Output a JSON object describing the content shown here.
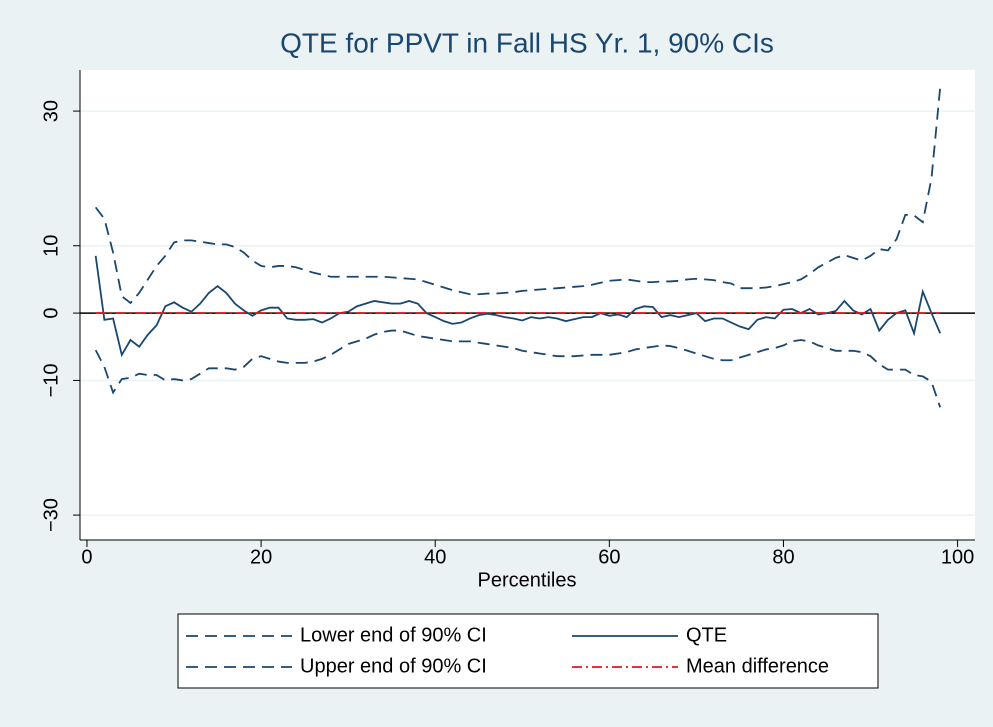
{
  "chart_data": {
    "type": "line",
    "title": "QTE for PPVT in Fall HS Yr. 1, 90% CIs",
    "x_label": "Percentiles",
    "x": [
      1,
      2,
      3,
      4,
      5,
      6,
      7,
      8,
      9,
      10,
      11,
      12,
      13,
      14,
      15,
      16,
      17,
      18,
      19,
      20,
      21,
      22,
      23,
      24,
      25,
      26,
      27,
      28,
      29,
      30,
      31,
      32,
      33,
      34,
      35,
      36,
      37,
      38,
      39,
      40,
      41,
      42,
      43,
      44,
      45,
      46,
      47,
      48,
      49,
      50,
      51,
      52,
      53,
      54,
      55,
      56,
      57,
      58,
      59,
      60,
      61,
      62,
      63,
      64,
      65,
      66,
      67,
      68,
      69,
      70,
      71,
      72,
      73,
      74,
      75,
      76,
      77,
      78,
      79,
      80,
      81,
      82,
      83,
      84,
      85,
      86,
      87,
      88,
      89,
      90,
      91,
      92,
      93,
      94,
      95,
      96,
      97,
      98
    ],
    "series": [
      {
        "name": "Lower end of 90% CI",
        "color": "#1a476f",
        "dash": "dashed",
        "values": [
          -5.5,
          -8,
          -11.8,
          -9.8,
          -9.6,
          -9,
          -9.2,
          -9.2,
          -10,
          -9.8,
          -10,
          -9.8,
          -9,
          -8.2,
          -8.2,
          -8.2,
          -8.4,
          -8,
          -6.8,
          -6.4,
          -6.8,
          -7.2,
          -7.4,
          -7.4,
          -7.4,
          -7.2,
          -6.8,
          -6.2,
          -5.4,
          -4.6,
          -4.2,
          -3.8,
          -3.2,
          -2.8,
          -2.6,
          -2.6,
          -3,
          -3.4,
          -3.6,
          -3.8,
          -4,
          -4.2,
          -4.2,
          -4.2,
          -4.4,
          -4.6,
          -4.8,
          -5,
          -5.2,
          -5.6,
          -5.8,
          -6,
          -6.2,
          -6.4,
          -6.4,
          -6.4,
          -6.3,
          -6.2,
          -6.2,
          -6.2,
          -6,
          -5.8,
          -5.4,
          -5.2,
          -5,
          -4.8,
          -4.9,
          -5.2,
          -5.6,
          -6,
          -6.4,
          -6.8,
          -7,
          -7,
          -6.6,
          -6.2,
          -5.8,
          -5.4,
          -5.2,
          -4.8,
          -4.2,
          -4,
          -4.2,
          -4.8,
          -5.2,
          -5.6,
          -5.6,
          -5.6,
          -5.8,
          -6.4,
          -7.6,
          -8.4,
          -8.4,
          -8.4,
          -9.2,
          -9.4,
          -10.2,
          -14
        ]
      },
      {
        "name": "QTE",
        "color": "#1a476f",
        "dash": "solid",
        "values": [
          8.5,
          -1,
          -0.8,
          -6.2,
          -4,
          -5,
          -3.2,
          -1.8,
          1,
          1.6,
          0.8,
          0.2,
          1.4,
          3,
          4,
          3,
          1.4,
          0.4,
          -0.4,
          0.4,
          0.8,
          0.8,
          -0.8,
          -1,
          -1,
          -0.9,
          -1.4,
          -0.8,
          0,
          0.2,
          1,
          1.4,
          1.8,
          1.6,
          1.4,
          1.4,
          1.8,
          1.4,
          0,
          -0.6,
          -1.2,
          -1.6,
          -1.4,
          -0.8,
          -0.3,
          -0.1,
          -0.3,
          -0.6,
          -0.8,
          -1.1,
          -0.6,
          -0.8,
          -0.6,
          -0.8,
          -1.2,
          -0.9,
          -0.6,
          -0.6,
          0,
          -0.4,
          -0.2,
          -0.6,
          0.6,
          1,
          0.9,
          -0.6,
          -0.3,
          -0.6,
          -0.3,
          0,
          -1.2,
          -0.8,
          -0.8,
          -1.4,
          -2,
          -2.4,
          -1,
          -0.6,
          -0.8,
          0.5,
          0.6,
          0,
          0.6,
          -0.2,
          0,
          0.3,
          1.8,
          0.4,
          -0.2,
          0.6,
          -2.6,
          -1,
          0,
          0.4,
          -3,
          3.2,
          0,
          -3
        ]
      },
      {
        "name": "Upper end of 90% CI",
        "color": "#1a476f",
        "dash": "dashed",
        "values": [
          15.7,
          14,
          9,
          2.5,
          1.5,
          3,
          5,
          7,
          8.5,
          10.5,
          10.8,
          10.8,
          10.6,
          10.4,
          10.2,
          10.2,
          9.8,
          9,
          7.8,
          7,
          6.8,
          7,
          7,
          6.8,
          6.4,
          6,
          5.7,
          5.4,
          5.4,
          5.4,
          5.4,
          5.4,
          5.4,
          5.4,
          5.3,
          5.2,
          5.1,
          5,
          4.6,
          4.2,
          3.8,
          3.4,
          3.1,
          2.8,
          2.8,
          2.9,
          2.9,
          3,
          3.1,
          3.3,
          3.4,
          3.5,
          3.6,
          3.7,
          3.8,
          3.9,
          4,
          4.2,
          4.5,
          4.8,
          4.9,
          5,
          4.8,
          4.6,
          4.6,
          4.7,
          4.7,
          4.8,
          5,
          5.1,
          5,
          4.9,
          4.6,
          4.4,
          3.7,
          3.7,
          3.7,
          3.8,
          4,
          4.3,
          4.6,
          5,
          5.8,
          6.8,
          7.5,
          8.2,
          8.6,
          8.2,
          7.8,
          8.5,
          9.5,
          9.3,
          11,
          14.6,
          14.5,
          13.5,
          20,
          33.5
        ]
      },
      {
        "name": "Mean difference",
        "color": "#e8141c",
        "dash": "dashdot",
        "values": [
          0,
          0,
          0,
          0,
          0,
          0,
          0,
          0,
          0,
          0,
          0,
          0,
          0,
          0,
          0,
          0,
          0,
          0,
          0,
          0,
          0,
          0,
          0,
          0,
          0,
          0,
          0,
          0,
          0,
          0,
          0,
          0,
          0,
          0,
          0,
          0,
          0,
          0,
          0,
          0,
          0,
          0,
          0,
          0,
          0,
          0,
          0,
          0,
          0,
          0,
          0,
          0,
          0,
          0,
          0,
          0,
          0,
          0,
          0,
          0,
          0,
          0,
          0,
          0,
          0,
          0,
          0,
          0,
          0,
          0,
          0,
          0,
          0,
          0,
          0,
          0,
          0,
          0,
          0,
          0,
          0,
          0,
          0,
          0,
          0,
          0,
          0,
          0,
          0,
          0,
          0,
          0,
          0,
          0,
          0,
          0,
          0,
          0
        ]
      }
    ],
    "xlim": [
      -0.8,
      102
    ],
    "ylim": [
      -33.7,
      36.1
    ],
    "xticks": [
      0,
      20,
      40,
      60,
      80,
      100
    ],
    "yticks": [
      {
        "value": -30,
        "label": "−30"
      },
      {
        "value": -10,
        "label": "−10"
      },
      0,
      10,
      30
    ],
    "hline": 0,
    "grid": true,
    "legend_columns": 2
  }
}
